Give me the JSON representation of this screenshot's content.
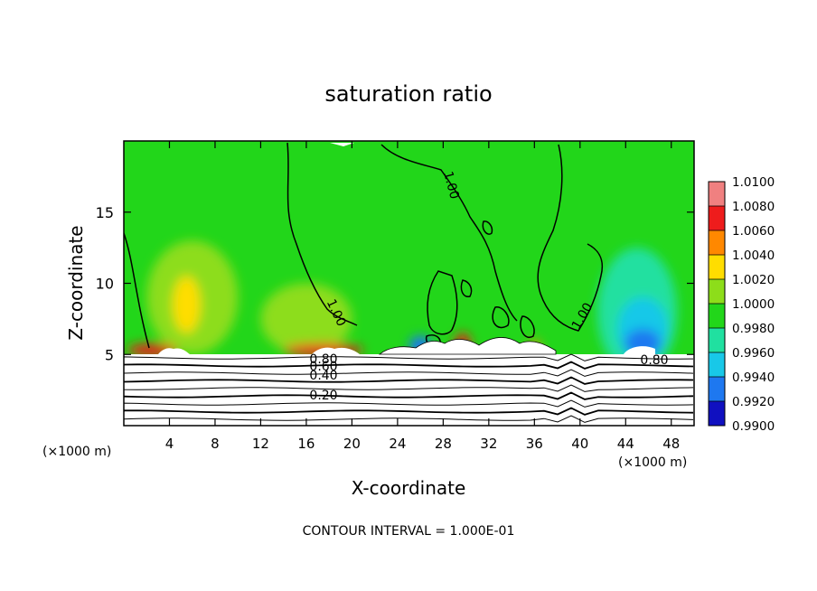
{
  "chart_data": {
    "type": "heatmap",
    "title": "saturation ratio",
    "xlabel": "X-coordinate",
    "ylabel": "Z-coordinate",
    "x_unit_left": "(×1000 m)",
    "x_unit_right": "(×1000 m)",
    "xlim": [
      0,
      50
    ],
    "ylim": [
      0,
      20
    ],
    "x_ticks": [
      4,
      8,
      12,
      16,
      20,
      24,
      28,
      32,
      36,
      40,
      44,
      48
    ],
    "y_ticks": [
      5,
      10,
      15
    ],
    "footer": "CONTOUR INTERVAL = 1.000E-01",
    "colorbar": {
      "levels": [
        "1.0100",
        "1.0080",
        "1.0060",
        "1.0040",
        "1.0020",
        "1.0000",
        "0.9980",
        "0.9960",
        "0.9940",
        "0.9920",
        "0.9900"
      ],
      "colors": [
        "#f08080",
        "#ee1c1c",
        "#ff8800",
        "#ffdd00",
        "#8ddd1a",
        "#22d61a",
        "#20e0a0",
        "#18c8e8",
        "#1e78f0",
        "#1010c0",
        "#7010a8"
      ]
    },
    "field_color": "#22d61a",
    "regions": [
      {
        "name": "warm-left",
        "cx": 6,
        "cz": 9,
        "rx": 4,
        "rz": 4,
        "color": "#8ddd1a"
      },
      {
        "name": "warm-left-core",
        "cx": 5.5,
        "cz": 8.5,
        "rx": 1.2,
        "rz": 2,
        "color": "#ffdd00"
      },
      {
        "name": "warm-mid",
        "cx": 16,
        "cz": 7.5,
        "rx": 4,
        "rz": 2.5,
        "color": "#8ddd1a"
      },
      {
        "name": "cool-right",
        "cx": 45,
        "cz": 8,
        "rx": 3.5,
        "rz": 4.5,
        "color": "#20e0a0"
      },
      {
        "name": "cool-right-inner",
        "cx": 45.5,
        "cz": 6.8,
        "rx": 2.2,
        "rz": 2.2,
        "color": "#18c8e8"
      },
      {
        "name": "cool-right-core",
        "cx": 45.5,
        "cz": 5.8,
        "rx": 1.6,
        "rz": 1,
        "color": "#1e78f0"
      },
      {
        "name": "blue-patch-26",
        "cx": 26,
        "cz": 5.6,
        "rx": 1,
        "rz": 0.7,
        "color": "#1e78f0"
      },
      {
        "name": "red-patch-30",
        "cx": 29.7,
        "cz": 5.7,
        "rx": 0.7,
        "rz": 0.8,
        "color": "#ee1c1c"
      },
      {
        "name": "red-band-left",
        "cx": 2.5,
        "cz": 5.3,
        "rx": 2.2,
        "rz": 0.45,
        "color": "#ee1c1c"
      },
      {
        "name": "red-band-mid",
        "cx": 17.5,
        "cz": 5.3,
        "rx": 3.5,
        "rz": 0.45,
        "color": "#ee1c1c"
      },
      {
        "name": "orange-36",
        "cx": 36,
        "cz": 5.5,
        "rx": 0.5,
        "rz": 0.5,
        "color": "#ff8800"
      }
    ],
    "contour_labels": [
      "1.00",
      "1.00",
      "1.00",
      "0.80",
      "0.60",
      "0.40",
      "0.20",
      "0.80"
    ],
    "stable_contour_levels": [
      0.1,
      0.2,
      0.3,
      0.4,
      0.5,
      0.6,
      0.7,
      0.8,
      0.9
    ]
  }
}
